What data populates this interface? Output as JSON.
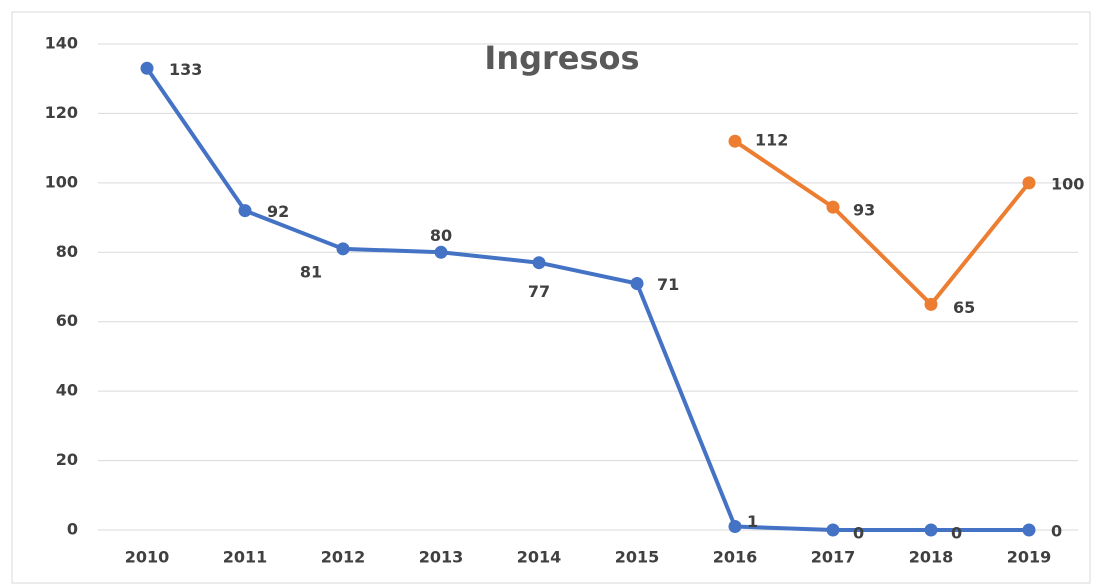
{
  "chart_data": {
    "type": "line",
    "title": "Ingresos",
    "categories": [
      "2010",
      "2011",
      "2012",
      "2013",
      "2014",
      "2015",
      "2016",
      "2017",
      "2018",
      "2019"
    ],
    "series": [
      {
        "color": "#4472c4",
        "values": [
          133,
          92,
          81,
          80,
          77,
          71,
          1,
          0,
          0,
          0
        ]
      },
      {
        "color": "#ed7d31",
        "values": [
          null,
          null,
          null,
          null,
          null,
          null,
          112,
          93,
          65,
          100
        ]
      }
    ],
    "ylim": [
      0,
      140
    ],
    "yticks": [
      0,
      20,
      40,
      60,
      80,
      100,
      120,
      140
    ],
    "grid": true
  }
}
